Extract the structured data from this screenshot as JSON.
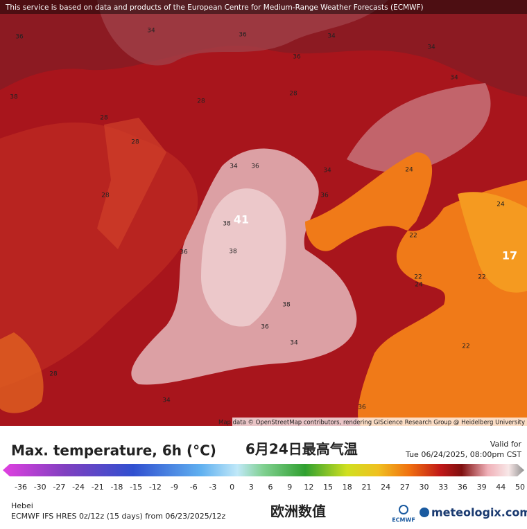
{
  "header": {
    "notice": "This service is based on data and products of the European Centre for Medium-Range Weather Forecasts (ECMWF)"
  },
  "map": {
    "attribution": "Map data © OpenStreetMap contributors, rendering GIScience Research Group @ Heidelberg University",
    "labels": [
      "36",
      "34",
      "36",
      "34",
      "34",
      "36",
      "34",
      "28",
      "38",
      "28",
      "28",
      "28",
      "36",
      "34",
      "34",
      "24",
      "36",
      "28",
      "38",
      "41",
      "24",
      "22",
      "36",
      "38",
      "17",
      "22",
      "22",
      "24",
      "38",
      "36",
      "34",
      "22",
      "34",
      "36",
      "28"
    ]
  },
  "title": {
    "main": "Max. temperature, 6h (°C)",
    "chinese": "6月24日最高气温",
    "valid_label": "Valid for",
    "valid_time": "Tue 06/24/2025, 08:00pm CST"
  },
  "colorbar": {
    "ticks": [
      -36,
      -30,
      -27,
      -24,
      -21,
      -18,
      -15,
      -12,
      -9,
      -6,
      -3,
      0,
      3,
      6,
      9,
      12,
      15,
      18,
      21,
      24,
      27,
      30,
      33,
      36,
      39,
      44,
      50
    ]
  },
  "footer": {
    "region": "Hebei",
    "model": "ECMWF IFS HRES 0z/12z (15 days) from 06/23/2025/12z",
    "chinese": "欧洲数值",
    "logo_left": "ECMWF",
    "logo_right": "meteologix.com"
  }
}
